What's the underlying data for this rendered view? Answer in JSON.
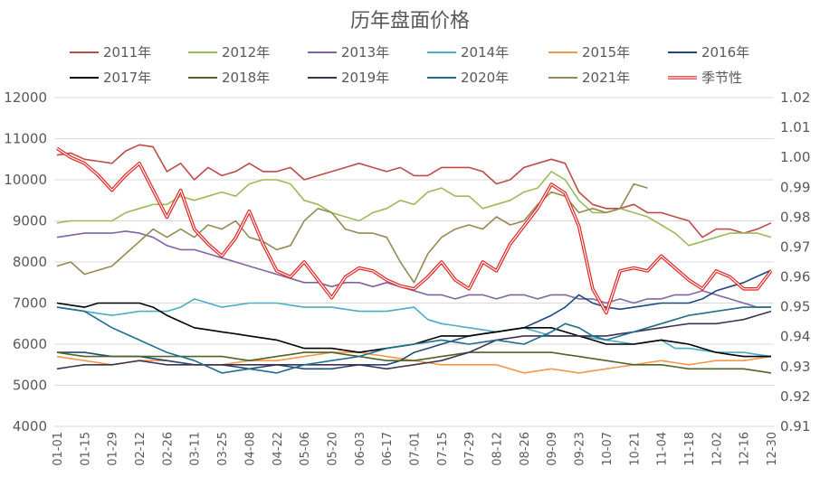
{
  "chart_data": {
    "type": "line",
    "title": "历年盘面价格",
    "xlabel": "",
    "ylabel": "",
    "legend": "top",
    "grid": true,
    "ylim": [
      4000,
      12000
    ],
    "y2lim": [
      0.91,
      1.02
    ],
    "yticks_left": [
      "4000",
      "5000",
      "6000",
      "7000",
      "8000",
      "9000",
      "10000",
      "11000",
      "12000"
    ],
    "yticks_right": [
      "0.91",
      "0.92",
      "0.93",
      "0.94",
      "0.95",
      "0.96",
      "0.97",
      "0.98",
      "0.99",
      "1.00",
      "1.01",
      "1.02"
    ],
    "xticks": [
      "01-01",
      "01-15",
      "01-29",
      "02-12",
      "02-26",
      "03-11",
      "03-25",
      "04-08",
      "04-22",
      "05-06",
      "05-20",
      "06-03",
      "06-17",
      "07-01",
      "07-15",
      "07-29",
      "08-12",
      "08-26",
      "09-09",
      "09-23",
      "10-07",
      "10-21",
      "11-04",
      "11-18",
      "12-02",
      "12-16",
      "12-30"
    ],
    "x": [
      "01-01",
      "01-08",
      "01-15",
      "01-22",
      "01-29",
      "02-05",
      "02-12",
      "02-19",
      "02-26",
      "03-04",
      "03-11",
      "03-18",
      "03-25",
      "04-01",
      "04-08",
      "04-15",
      "04-22",
      "04-29",
      "05-06",
      "05-13",
      "05-20",
      "05-27",
      "06-03",
      "06-10",
      "06-17",
      "06-24",
      "07-01",
      "07-08",
      "07-15",
      "07-22",
      "07-29",
      "08-05",
      "08-12",
      "08-19",
      "08-26",
      "09-02",
      "09-09",
      "09-16",
      "09-23",
      "09-30",
      "10-07",
      "10-14",
      "10-21",
      "10-28",
      "11-04",
      "11-11",
      "11-18",
      "11-25",
      "12-02",
      "12-09",
      "12-16",
      "12-23",
      "12-30"
    ],
    "series": [
      {
        "name": "2011年",
        "color": "#BE4B48",
        "axis": "left",
        "values": [
          10600,
          10650,
          10500,
          10450,
          10400,
          10700,
          10850,
          10800,
          10200,
          10400,
          10000,
          10300,
          10100,
          10200,
          10400,
          10200,
          10200,
          10300,
          10000,
          10100,
          10200,
          10300,
          10400,
          10300,
          10200,
          10300,
          10100,
          10100,
          10300,
          10300,
          10300,
          10200,
          9900,
          10000,
          10300,
          10400,
          10500,
          10400,
          9700,
          9400,
          9300,
          9300,
          9400,
          9200,
          9200,
          9100,
          9000,
          8600,
          8800,
          8800,
          8700,
          8800,
          8950
        ]
      },
      {
        "name": "2012年",
        "color": "#9BBB59",
        "axis": "left",
        "values": [
          8950,
          9000,
          9000,
          9000,
          9000,
          9200,
          9300,
          9400,
          9400,
          9600,
          9500,
          9600,
          9700,
          9600,
          9900,
          10000,
          10000,
          9900,
          9500,
          9400,
          9200,
          9100,
          9000,
          9200,
          9300,
          9500,
          9400,
          9700,
          9800,
          9600,
          9600,
          9300,
          9400,
          9500,
          9700,
          9800,
          10200,
          10000,
          9500,
          9200,
          9200,
          9300,
          9200,
          9100,
          8900,
          8700,
          8400,
          8500,
          8600,
          8700,
          8700,
          8700,
          8600
        ]
      },
      {
        "name": "2013年",
        "color": "#8064A2",
        "axis": "left",
        "values": [
          8600,
          8650,
          8700,
          8700,
          8700,
          8750,
          8700,
          8600,
          8400,
          8300,
          8300,
          8200,
          8100,
          8000,
          7900,
          7800,
          7700,
          7600,
          7500,
          7500,
          7400,
          7500,
          7500,
          7400,
          7500,
          7400,
          7300,
          7200,
          7200,
          7100,
          7200,
          7200,
          7100,
          7200,
          7200,
          7100,
          7200,
          7200,
          7100,
          7100,
          7000,
          7100,
          7000,
          7100,
          7100,
          7200,
          7200,
          7300,
          7200,
          7100,
          7000,
          6900,
          6900
        ]
      },
      {
        "name": "2014年",
        "color": "#4BACC6",
        "axis": "left",
        "values": [
          6900,
          6850,
          6800,
          6750,
          6700,
          6750,
          6800,
          6800,
          6800,
          6900,
          7100,
          7000,
          6900,
          6950,
          7000,
          7000,
          7000,
          6950,
          6900,
          6900,
          6900,
          6850,
          6800,
          6800,
          6800,
          6850,
          6900,
          6600,
          6500,
          6450,
          6400,
          6350,
          6300,
          6350,
          6400,
          6300,
          6200,
          6200,
          6200,
          6150,
          6100,
          6050,
          6000,
          6050,
          6100,
          5900,
          5900,
          5850,
          5800,
          5800,
          5800,
          5750,
          5700
        ]
      },
      {
        "name": "2015年",
        "color": "#F79646",
        "axis": "left",
        "values": [
          5700,
          5650,
          5600,
          5550,
          5500,
          5550,
          5600,
          5600,
          5600,
          5550,
          5500,
          5500,
          5500,
          5550,
          5600,
          5600,
          5600,
          5650,
          5700,
          5750,
          5800,
          5800,
          5800,
          5750,
          5700,
          5650,
          5600,
          5550,
          5500,
          5500,
          5500,
          5500,
          5500,
          5400,
          5300,
          5350,
          5400,
          5350,
          5300,
          5350,
          5400,
          5450,
          5500,
          5550,
          5600,
          5550,
          5500,
          5550,
          5600,
          5600,
          5600,
          5650,
          5700
        ]
      },
      {
        "name": "2016年",
        "color": "#1F497D",
        "axis": "left",
        "values": [
          5800,
          5800,
          5800,
          5750,
          5700,
          5700,
          5700,
          5650,
          5600,
          5550,
          5500,
          5500,
          5500,
          5450,
          5400,
          5450,
          5500,
          5450,
          5400,
          5400,
          5400,
          5450,
          5500,
          5500,
          5500,
          5600,
          5800,
          5900,
          6000,
          6100,
          6200,
          6250,
          6300,
          6350,
          6400,
          6550,
          6700,
          6900,
          7200,
          7000,
          6900,
          6850,
          6900,
          6950,
          7000,
          7000,
          7000,
          7100,
          7300,
          7400,
          7500,
          7650,
          7800
        ]
      },
      {
        "name": "2017年",
        "color": "#000000",
        "axis": "left",
        "values": [
          7000,
          6950,
          6900,
          7000,
          7000,
          7000,
          7000,
          6900,
          6700,
          6550,
          6400,
          6350,
          6300,
          6250,
          6200,
          6150,
          6100,
          6000,
          5900,
          5900,
          5900,
          5850,
          5800,
          5850,
          5900,
          5950,
          6000,
          6100,
          6200,
          6200,
          6200,
          6250,
          6300,
          6350,
          6400,
          6400,
          6400,
          6300,
          6200,
          6100,
          6000,
          6000,
          6000,
          6050,
          6100,
          6050,
          6000,
          5900,
          5800,
          5750,
          5700,
          5700,
          5700
        ]
      },
      {
        "name": "2018年",
        "color": "#4F6228",
        "axis": "left",
        "values": [
          5800,
          5750,
          5700,
          5700,
          5700,
          5700,
          5700,
          5700,
          5700,
          5700,
          5700,
          5700,
          5700,
          5650,
          5600,
          5650,
          5700,
          5750,
          5800,
          5800,
          5800,
          5750,
          5700,
          5650,
          5600,
          5600,
          5600,
          5650,
          5700,
          5750,
          5800,
          5800,
          5800,
          5800,
          5800,
          5800,
          5800,
          5750,
          5700,
          5650,
          5600,
          5550,
          5500,
          5500,
          5500,
          5450,
          5400,
          5400,
          5400,
          5400,
          5400,
          5350,
          5300
        ]
      },
      {
        "name": "2019年",
        "color": "#3F3151",
        "axis": "left",
        "values": [
          5400,
          5450,
          5500,
          5500,
          5500,
          5550,
          5600,
          5550,
          5500,
          5500,
          5500,
          5500,
          5500,
          5500,
          5500,
          5500,
          5500,
          5500,
          5500,
          5500,
          5500,
          5500,
          5500,
          5450,
          5400,
          5450,
          5500,
          5550,
          5600,
          5700,
          5800,
          5950,
          6100,
          6150,
          6200,
          6200,
          6200,
          6200,
          6200,
          6200,
          6200,
          6250,
          6300,
          6350,
          6400,
          6450,
          6500,
          6500,
          6500,
          6550,
          6600,
          6700,
          6800
        ]
      },
      {
        "name": "2020年",
        "color": "#1F6E8C",
        "axis": "left",
        "values": [
          6900,
          6850,
          6800,
          6600,
          6400,
          6250,
          6100,
          5950,
          5800,
          5700,
          5600,
          5450,
          5300,
          5350,
          5400,
          5350,
          5300,
          5400,
          5500,
          5550,
          5600,
          5650,
          5700,
          5800,
          5900,
          5950,
          6000,
          6050,
          6100,
          6050,
          6000,
          6050,
          6100,
          6050,
          6000,
          6150,
          6300,
          6500,
          6400,
          6200,
          6100,
          6200,
          6300,
          6400,
          6500,
          6600,
          6700,
          6750,
          6800,
          6850,
          6900,
          6900,
          6900
        ]
      },
      {
        "name": "2021年",
        "color": "#948A54",
        "axis": "left",
        "values": [
          7900,
          8000,
          7700,
          7800,
          7900,
          8200,
          8500,
          8800,
          8600,
          8800,
          8600,
          8900,
          8800,
          9000,
          8600,
          8500,
          8300,
          8400,
          9000,
          9300,
          9200,
          8800,
          8700,
          8700,
          8600,
          8000,
          7500,
          8200,
          8600,
          8800,
          8900,
          8800,
          9100,
          8900,
          9000,
          9400,
          9700,
          9600,
          9200,
          9300,
          9200,
          9300,
          9900,
          9800,
          null,
          null,
          null,
          null,
          null,
          null,
          null,
          null,
          null
        ]
      },
      {
        "name": "季节性",
        "color": "#E32322",
        "axis": "right",
        "line_style": "double",
        "values": [
          1.003,
          1.0,
          0.998,
          0.994,
          0.989,
          0.994,
          0.998,
          0.989,
          0.98,
          0.989,
          0.976,
          0.971,
          0.967,
          0.973,
          0.982,
          0.971,
          0.962,
          0.96,
          0.965,
          0.959,
          0.953,
          0.96,
          0.963,
          0.962,
          0.959,
          0.957,
          0.956,
          0.96,
          0.965,
          0.959,
          0.956,
          0.965,
          0.962,
          0.971,
          0.977,
          0.983,
          0.991,
          0.988,
          0.977,
          0.956,
          0.948,
          0.962,
          0.963,
          0.962,
          0.967,
          0.963,
          0.959,
          0.956,
          0.962,
          0.96,
          0.956,
          0.956,
          0.962
        ]
      }
    ]
  }
}
